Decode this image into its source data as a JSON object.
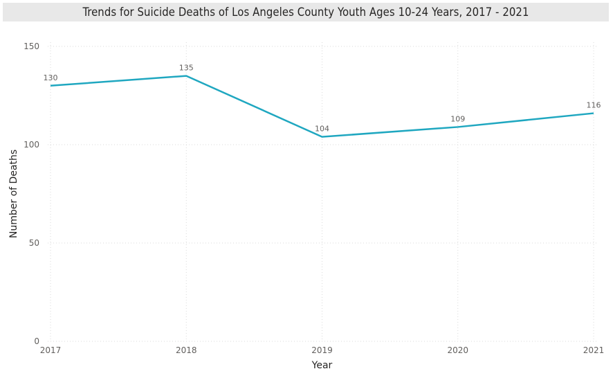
{
  "chart_data": {
    "type": "line",
    "title": "Trends for Suicide Deaths of Los Angeles County Youth Ages 10-24 Years, 2017 - 2021",
    "xlabel": "Year",
    "ylabel": "Number of Deaths",
    "categories": [
      "2017",
      "2018",
      "2019",
      "2020",
      "2021"
    ],
    "series": [
      {
        "name": "Number of Deaths",
        "values": [
          130,
          135,
          104,
          109,
          116
        ],
        "color": "#1fa7c0"
      }
    ],
    "data_labels": [
      "130",
      "135",
      "104",
      "109",
      "116"
    ],
    "ylim": [
      0,
      150
    ],
    "yticks": [
      0,
      50,
      100,
      150
    ],
    "ytick_labels": [
      "0",
      "50",
      "100",
      "150"
    ],
    "grid": true,
    "legend": "none"
  }
}
